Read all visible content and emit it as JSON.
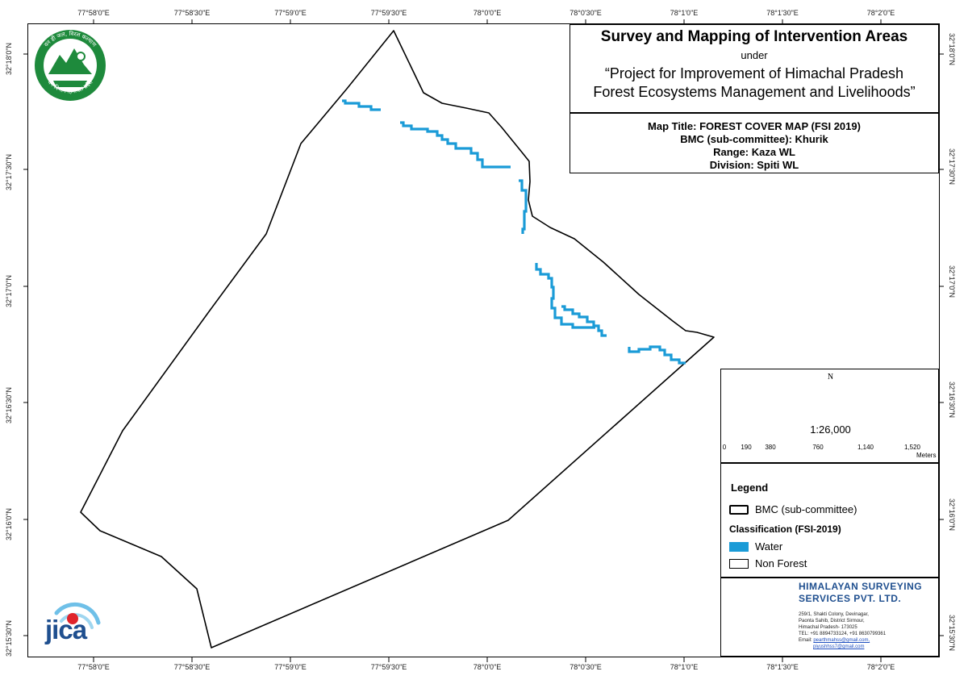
{
  "title": {
    "main": "Survey and Mapping of Intervention Areas",
    "under": "under",
    "project_line1": "“Project for Improvement of Himachal Pradesh",
    "project_line2": "Forest Ecosystems Management and Livelihoods”"
  },
  "info": {
    "map_title": "Map Title: FOREST COVER MAP (FSI 2019)",
    "bmc": "BMC (sub-committee): Khurik",
    "range": "Range: Kaza WL",
    "division": "Division: Spiti WL"
  },
  "coordinates": {
    "top": [
      "77°58'0\"E",
      "77°58'30\"E",
      "77°59'0\"E",
      "77°59'30\"E",
      "78°0'0\"E",
      "78°0'30\"E",
      "78°1'0\"E",
      "78°1'30\"E",
      "78°2'0\"E"
    ],
    "bottom": [
      "77°58'0\"E",
      "77°58'30\"E",
      "77°59'0\"E",
      "77°59'30\"E",
      "78°0'0\"E",
      "78°0'30\"E",
      "78°1'0\"E",
      "78°1'30\"E",
      "78°2'0\"E"
    ],
    "left": [
      "32°18'0\"N",
      "32°17'30\"N",
      "32°17'0\"N",
      "32°16'30\"N",
      "32°16'0\"N",
      "32°15'30\"N"
    ],
    "right": [
      "32°18'0\"N",
      "32°17'30\"N",
      "32°17'0\"N",
      "32°16'30\"N",
      "32°16'0\"N",
      "32°15'30\"N"
    ]
  },
  "north_arrow": {
    "label": "N",
    "icon": "north-arrow-compass-icon"
  },
  "scale": {
    "ratio": "1:26,000",
    "ticks": [
      "0",
      "190",
      "380",
      "760",
      "1,140",
      "1,520"
    ],
    "units": "Meters"
  },
  "legend": {
    "title": "Legend",
    "boundary_label": "BMC (sub-committee)",
    "classification_title": "Classification (FSI-2019)",
    "items": [
      {
        "label": "Water",
        "color": "#1a9bd7"
      },
      {
        "label": "Non Forest",
        "color": "#ffffff"
      }
    ]
  },
  "company": {
    "name_line1": "HIMALAYAN SURVEYING",
    "name_line2": "SERVICES PVT. LTD.",
    "address": [
      "259/1, Shakti Colony, Devinagar,",
      "Paonta Sahib, District Sirmour,",
      "Himachal Pradesh- 173025",
      "TEL: +91 8894733124, +91 8630799361"
    ],
    "email_prefix": "Email:",
    "email1": "pearthmahss@gmail.com,",
    "email2": "piyushhss7@gmail.com",
    "icons": [
      "drone-icon",
      "globe-icon",
      "total-station-tripod-icon"
    ]
  },
  "logos": {
    "forest_dept_text_top": "वन ही जल, विरल कल्याण",
    "forest_dept_text_bottom": "वन विभाग हिमाचल प्रदेश",
    "jica": "JICA"
  },
  "colors": {
    "water": "#1a9bd7",
    "boundary": "#000000",
    "company_blue": "#1f4f8f",
    "forest_green": "#1e8a3c"
  }
}
